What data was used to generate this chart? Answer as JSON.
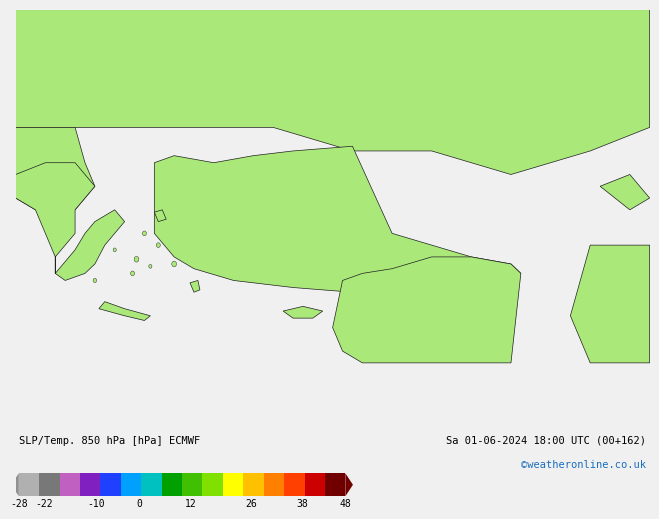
{
  "title_left": "SLP/Temp. 850 hPa [hPa] ECMWF",
  "title_right_line1": "Sa 01-06-2024 18:00 UTC (00+162)",
  "title_right_line2": "©weatheronline.co.uk",
  "colorbar_values": [
    -28,
    -22,
    -10,
    0,
    12,
    26,
    38,
    48
  ],
  "colorbar_colors": [
    "#b0b0b0",
    "#787878",
    "#c060c0",
    "#8020c0",
    "#2040ff",
    "#00a0ff",
    "#00c0c0",
    "#00a000",
    "#40c000",
    "#80e000",
    "#ffff00",
    "#ffc000",
    "#ff8000",
    "#ff4000",
    "#cc0000",
    "#700000"
  ],
  "bg_color": "#f0f0f0",
  "land_color": "#aae87a",
  "sea_color": "#dcdcdc",
  "border_color": "#202020",
  "right_text_color": "#1a6dbf",
  "left_text_color": "#000000",
  "lon_min": 19.0,
  "lon_max": 51.0,
  "lat_min": 30.0,
  "lat_max": 48.0
}
